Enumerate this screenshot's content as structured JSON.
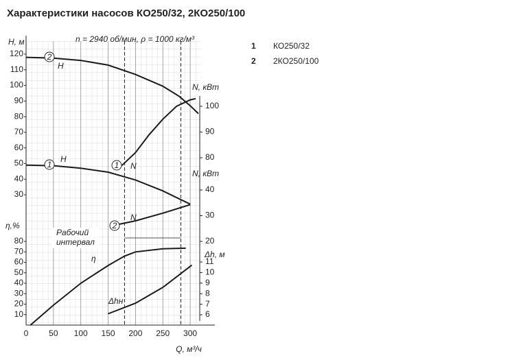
{
  "chart_data": {
    "type": "line",
    "title": "Характеристики насосов КО250/32, 2КО250/100",
    "subtitle": "n = 2940 об/мин, ρ = 1000 кг/м³",
    "legend": [
      {
        "number": "1",
        "name": "КО250/32"
      },
      {
        "number": "2",
        "name": "2КО250/100"
      }
    ],
    "xlabel": "Q, м³/ч",
    "xlim": [
      0,
      320
    ],
    "xticks": [
      0,
      50,
      100,
      150,
      200,
      250,
      300
    ],
    "grid": true,
    "working_interval": {
      "label": [
        "Рабочий",
        "интервал"
      ],
      "range": [
        180,
        283
      ]
    },
    "panels": [
      {
        "ylabel": "H, м",
        "side": "left",
        "ylim": [
          30,
          120
        ],
        "yticks": [
          30,
          40,
          50,
          60,
          70,
          80,
          90,
          100,
          110,
          120
        ],
        "series": [
          {
            "number": "2",
            "name": "H",
            "color": "#1a1a1a",
            "x": [
              0,
              50,
              100,
              150,
              200,
              250,
              280,
              300,
              315
            ],
            "values": [
              118,
              117.5,
              116,
              113,
              107,
              99.5,
              93,
              87,
              82
            ]
          },
          {
            "number": "1",
            "name": "H",
            "color": "#1a1a1a",
            "x": [
              0,
              50,
              100,
              150,
              200,
              250,
              300
            ],
            "values": [
              49,
              48.6,
              47,
              44.5,
              39.5,
              32.5,
              24
            ]
          }
        ]
      },
      {
        "ylabel": "N, кВт",
        "side": "right",
        "ylim": [
          80,
          100
        ],
        "yticks": [
          80,
          90,
          100
        ],
        "series": [
          {
            "number": "1",
            "name": "N",
            "color": "#1a1a1a",
            "x": [
              175,
              200,
              225,
              250,
              275,
              300,
              310
            ],
            "values": [
              77,
              82,
              89,
              95,
              100,
              102.5,
              103
            ]
          }
        ]
      },
      {
        "ylabel": "N, кВт",
        "side": "right",
        "ylim": [
          20,
          40
        ],
        "yticks": [
          20,
          30,
          40
        ],
        "series": [
          {
            "number": "2",
            "name": "N",
            "color": "#1a1a1a",
            "x": [
              155,
              200,
              250,
              300
            ],
            "values": [
              26,
              28,
              31,
              34.3
            ]
          }
        ]
      },
      {
        "ylabel": "η,%",
        "side": "left",
        "ylim": [
          0,
          80
        ],
        "yticks": [
          10,
          20,
          30,
          40,
          50,
          60,
          70,
          80
        ],
        "series": [
          {
            "name": "η",
            "color": "#1a1a1a",
            "x": [
              8,
              50,
              100,
              150,
              180,
              200,
              250,
              292
            ],
            "values": [
              0,
              19,
              40,
              57,
              66,
              70,
              73,
              73.5
            ]
          }
        ]
      },
      {
        "ylabel": "Δh, м",
        "side": "right",
        "ylim": [
          6,
          11
        ],
        "yticks": [
          6,
          7,
          8,
          9,
          10,
          11
        ],
        "series": [
          {
            "name": "Δhн",
            "color": "#1a1a1a",
            "x": [
              150,
              200,
              250,
              303
            ],
            "values": [
              6.1,
              7.1,
              8.6,
              10.7
            ]
          }
        ]
      }
    ]
  }
}
